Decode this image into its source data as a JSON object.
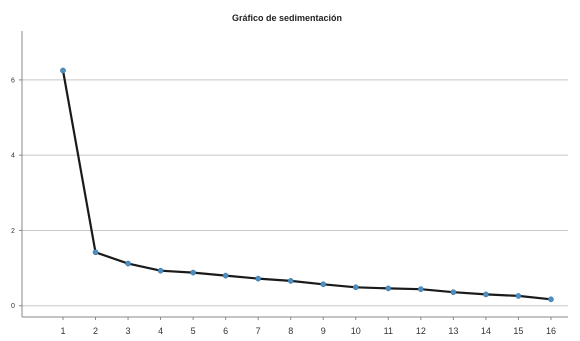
{
  "chart_data": {
    "type": "line",
    "title": "Gráfico de sedimentación",
    "xlabel": "",
    "ylabel": "",
    "x": [
      1,
      2,
      3,
      4,
      5,
      6,
      7,
      8,
      9,
      10,
      11,
      12,
      13,
      14,
      15,
      16
    ],
    "series": [
      {
        "values": [
          6.25,
          1.42,
          1.12,
          0.93,
          0.88,
          0.8,
          0.72,
          0.66,
          0.57,
          0.49,
          0.46,
          0.44,
          0.36,
          0.3,
          0.26,
          0.17
        ]
      }
    ],
    "x_tick_labels": [
      "1",
      "2",
      "3",
      "4",
      "5",
      "6",
      "7",
      "8",
      "9",
      "10",
      "11",
      "12",
      "13",
      "14",
      "15",
      "16"
    ],
    "y_tick_labels": [
      "0",
      "2",
      "4",
      "6"
    ],
    "yticks": [
      0,
      2,
      4,
      6
    ],
    "ylim": [
      -0.3,
      7.3
    ],
    "grid": true,
    "legend": "none",
    "colors": {
      "line": "#1a1a1a",
      "marker": "#4f8fc0",
      "grid": "#c8c8c8",
      "axis": "#888888"
    }
  }
}
